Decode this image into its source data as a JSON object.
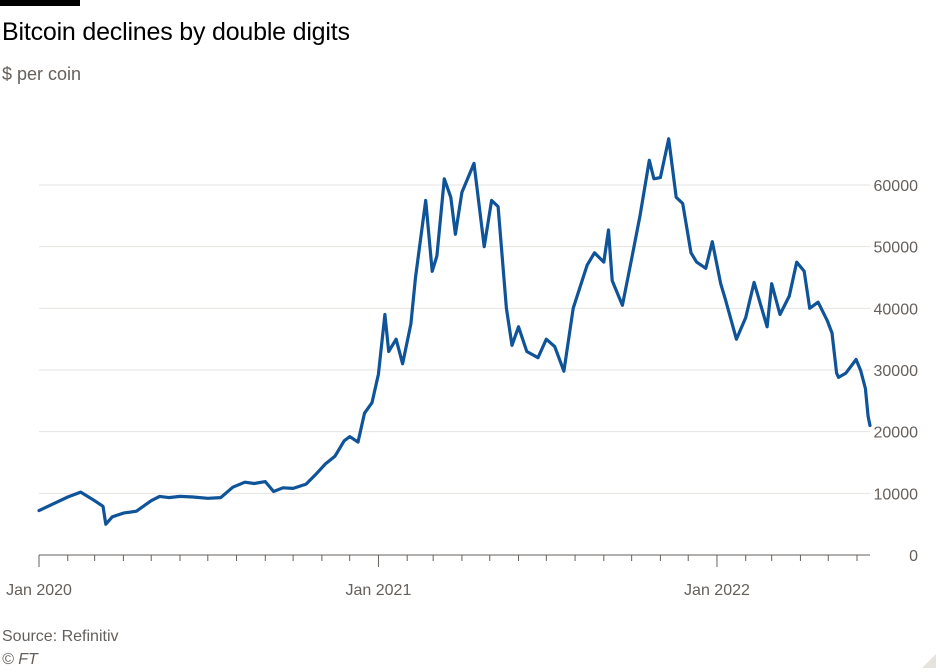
{
  "title": "Bitcoin declines by double digits",
  "subtitle": "$ per coin",
  "source": "Source: Refinitiv",
  "credit": "© FT",
  "chart_data": {
    "type": "line",
    "title": "Bitcoin declines by double digits",
    "ylabel": "$ per coin",
    "xlabel": "",
    "ylim": [
      0,
      65000
    ],
    "xlim": [
      "2020-01-01",
      "2022-06-15"
    ],
    "grid": true,
    "y_ticks": [
      0,
      10000,
      20000,
      30000,
      40000,
      50000,
      60000
    ],
    "y_tick_labels": [
      "0",
      "10000",
      "20000",
      "30000",
      "40000",
      "50000",
      "60000"
    ],
    "x_ticks": [
      "2020-01-01",
      "2021-01-01",
      "2022-01-01"
    ],
    "x_tick_labels": [
      "Jan 2020",
      "Jan 2021",
      "Jan 2022"
    ],
    "series_color": "#0f5499",
    "series": [
      {
        "x": [
          "2020-01-01",
          "2020-01-15",
          "2020-02-01",
          "2020-02-15",
          "2020-03-01",
          "2020-03-10",
          "2020-03-13",
          "2020-03-20",
          "2020-04-01",
          "2020-04-15",
          "2020-05-01",
          "2020-05-10",
          "2020-05-20",
          "2020-06-01",
          "2020-06-15",
          "2020-07-01",
          "2020-07-15",
          "2020-07-28",
          "2020-08-10",
          "2020-08-20",
          "2020-09-01",
          "2020-09-10",
          "2020-09-20",
          "2020-10-01",
          "2020-10-15",
          "2020-10-25",
          "2020-11-05",
          "2020-11-15",
          "2020-11-25",
          "2020-12-01",
          "2020-12-10",
          "2020-12-17",
          "2020-12-25",
          "2021-01-01",
          "2021-01-08",
          "2021-01-12",
          "2021-01-20",
          "2021-01-27",
          "2021-02-05",
          "2021-02-10",
          "2021-02-21",
          "2021-02-28",
          "2021-03-05",
          "2021-03-13",
          "2021-03-20",
          "2021-03-25",
          "2021-04-01",
          "2021-04-14",
          "2021-04-25",
          "2021-05-03",
          "2021-05-10",
          "2021-05-19",
          "2021-05-25",
          "2021-06-01",
          "2021-06-10",
          "2021-06-22",
          "2021-07-01",
          "2021-07-10",
          "2021-07-20",
          "2021-07-30",
          "2021-08-14",
          "2021-08-22",
          "2021-09-01",
          "2021-09-06",
          "2021-09-10",
          "2021-09-21",
          "2021-10-01",
          "2021-10-10",
          "2021-10-20",
          "2021-10-25",
          "2021-11-01",
          "2021-11-10",
          "2021-11-18",
          "2021-11-25",
          "2021-12-04",
          "2021-12-10",
          "2021-12-20",
          "2021-12-27",
          "2022-01-05",
          "2022-01-10",
          "2022-01-22",
          "2022-02-01",
          "2022-02-10",
          "2022-02-24",
          "2022-03-01",
          "2022-03-10",
          "2022-03-20",
          "2022-03-28",
          "2022-04-05",
          "2022-04-11",
          "2022-04-20",
          "2022-04-30",
          "2022-05-05",
          "2022-05-10",
          "2022-05-12",
          "2022-05-20",
          "2022-05-31",
          "2022-06-05",
          "2022-06-10",
          "2022-06-13",
          "2022-06-15"
        ],
        "y": [
          7200,
          8200,
          9400,
          10200,
          8800,
          7900,
          5000,
          6200,
          6800,
          7100,
          8800,
          9500,
          9300,
          9500,
          9400,
          9200,
          9300,
          11000,
          11800,
          11600,
          11900,
          10300,
          10900,
          10800,
          11500,
          13000,
          14800,
          16000,
          18500,
          19200,
          18300,
          23000,
          24700,
          29300,
          39000,
          33000,
          35000,
          31000,
          37500,
          45000,
          57500,
          46000,
          48500,
          61000,
          58000,
          52000,
          58800,
          63500,
          50000,
          57500,
          56500,
          40000,
          34000,
          37000,
          33000,
          32000,
          35000,
          33800,
          29800,
          40000,
          47000,
          49000,
          47500,
          52700,
          44500,
          40500,
          48000,
          55000,
          64000,
          61000,
          61200,
          67500,
          58000,
          57000,
          49000,
          47500,
          46500,
          50800,
          44000,
          41500,
          35000,
          38500,
          44200,
          37000,
          44000,
          39000,
          42000,
          47500,
          46000,
          40000,
          41000,
          38000,
          36000,
          29500,
          28800,
          29500,
          31700,
          29900,
          27000,
          22500,
          21000
        ]
      }
    ]
  }
}
